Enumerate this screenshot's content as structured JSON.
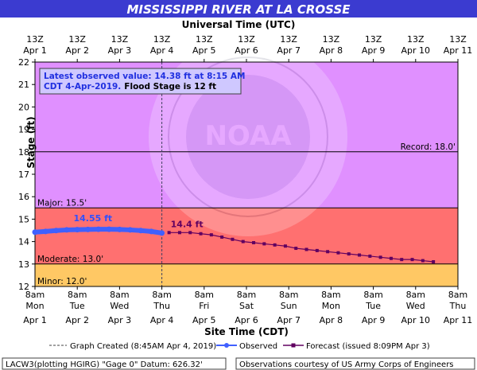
{
  "chart_data": {
    "type": "line",
    "title": "MISSISSIPPI RIVER AT LA CROSSE",
    "top_axis_label": "Universal Time (UTC)",
    "top_axis_ticks": [
      {
        "l1": "13Z",
        "l2": "Apr 1"
      },
      {
        "l1": "13Z",
        "l2": "Apr 2"
      },
      {
        "l1": "13Z",
        "l2": "Apr 3"
      },
      {
        "l1": "13Z",
        "l2": "Apr 4"
      },
      {
        "l1": "13Z",
        "l2": "Apr 5"
      },
      {
        "l1": "13Z",
        "l2": "Apr 6"
      },
      {
        "l1": "13Z",
        "l2": "Apr 7"
      },
      {
        "l1": "13Z",
        "l2": "Apr 8"
      },
      {
        "l1": "13Z",
        "l2": "Apr 9"
      },
      {
        "l1": "13Z",
        "l2": "Apr 10"
      },
      {
        "l1": "13Z",
        "l2": "Apr 11"
      }
    ],
    "xlabel": "Site Time (CDT)",
    "bottom_axis_ticks": [
      {
        "l1": "8am",
        "l2": "Mon",
        "l3": "Apr 1"
      },
      {
        "l1": "8am",
        "l2": "Tue",
        "l3": "Apr 2"
      },
      {
        "l1": "8am",
        "l2": "Wed",
        "l3": "Apr 3"
      },
      {
        "l1": "8am",
        "l2": "Thu",
        "l3": "Apr 4"
      },
      {
        "l1": "8am",
        "l2": "Fri",
        "l3": "Apr 5"
      },
      {
        "l1": "8am",
        "l2": "Sat",
        "l3": "Apr 6"
      },
      {
        "l1": "8am",
        "l2": "Sun",
        "l3": "Apr 7"
      },
      {
        "l1": "8am",
        "l2": "Mon",
        "l3": "Apr 8"
      },
      {
        "l1": "8am",
        "l2": "Tue",
        "l3": "Apr 9"
      },
      {
        "l1": "8am",
        "l2": "Wed",
        "l3": "Apr 10"
      },
      {
        "l1": "8am",
        "l2": "Thu",
        "l3": "Apr 11"
      }
    ],
    "ylabel": "Stage (ft)",
    "ylim": [
      12,
      22
    ],
    "yticks": [
      12,
      13,
      14,
      15,
      16,
      17,
      18,
      19,
      20,
      21,
      22
    ],
    "xlim_days_apr": [
      1,
      11
    ],
    "grid": false,
    "stage_bands": [
      {
        "name": "minor",
        "from": 12.0,
        "to": 13.0,
        "color": "#ffc864"
      },
      {
        "name": "moderate",
        "from": 13.0,
        "to": 15.5,
        "color": "#ff7070"
      },
      {
        "name": "major",
        "from": 15.5,
        "to": 22.0,
        "color": "#e090ff"
      }
    ],
    "threshold_lines": [
      {
        "value": 12.0,
        "label": "Minor: 12.0'",
        "side": "left"
      },
      {
        "value": 13.0,
        "label": "Moderate: 13.0'",
        "side": "left"
      },
      {
        "value": 15.5,
        "label": "Major: 15.5'",
        "side": "left"
      },
      {
        "value": 18.0,
        "label": "Record: 18.0'",
        "side": "right"
      }
    ],
    "annotation_lines": [
      "Latest observed value: 14.38 ft at 8:15 AM",
      "CDT 4-Apr-2019."
    ],
    "annotation_flood": "Flood Stage is 12 ft",
    "observed_peak_label": "14.55 ft",
    "forecast_peak_label": "14.4 ft",
    "series": [
      {
        "name": "Observed",
        "color": "#4060ff",
        "x": [
          1.0,
          1.25,
          1.5,
          1.75,
          2.0,
          2.25,
          2.5,
          2.75,
          3.0,
          3.25,
          3.5,
          3.75,
          4.0
        ],
        "y": [
          14.42,
          14.45,
          14.49,
          14.52,
          14.53,
          14.54,
          14.55,
          14.55,
          14.54,
          14.52,
          14.49,
          14.45,
          14.38
        ]
      },
      {
        "name": "Forecast",
        "color": "#600060",
        "x": [
          4.17,
          4.42,
          4.67,
          4.92,
          5.17,
          5.42,
          5.67,
          5.92,
          6.17,
          6.42,
          6.67,
          6.92,
          7.17,
          7.42,
          7.67,
          7.92,
          8.17,
          8.42,
          8.67,
          8.92,
          9.17,
          9.42,
          9.67,
          9.92,
          10.17,
          10.42
        ],
        "y": [
          14.4,
          14.4,
          14.4,
          14.35,
          14.3,
          14.2,
          14.1,
          14.0,
          13.95,
          13.9,
          13.85,
          13.8,
          13.7,
          13.65,
          13.6,
          13.55,
          13.5,
          13.45,
          13.4,
          13.35,
          13.3,
          13.25,
          13.2,
          13.2,
          13.15,
          13.1
        ]
      }
    ],
    "graph_created_day_apr": 4.0,
    "legend": {
      "created": "Graph Created (8:45AM Apr 4, 2019)",
      "observed": "Observed",
      "forecast": "Forecast (issued 8:09PM Apr 3)"
    },
    "footer_left": "LACW3(plotting HGIRG) \"Gage 0\" Datum: 626.32'",
    "footer_right": "Observations courtesy of US Army Corps of Engineers",
    "watermark": "NOAA"
  }
}
